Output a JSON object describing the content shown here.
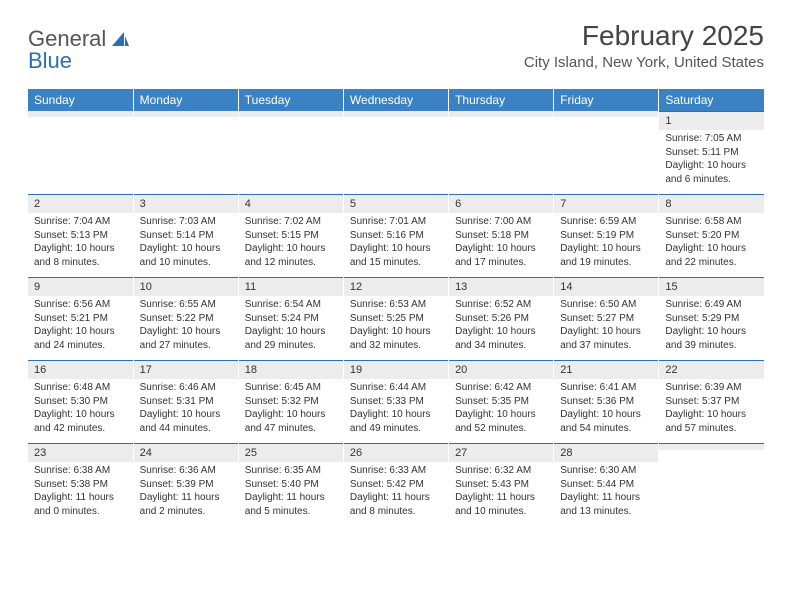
{
  "brand": {
    "part1": "General",
    "part2": "Blue"
  },
  "title": "February 2025",
  "location": "City Island, New York, United States",
  "colors": {
    "header_bg": "#3b82c4",
    "header_text": "#ffffff",
    "daynum_bg": "#ececec",
    "border_top": "#2b6fb0",
    "text": "#333333",
    "page_bg": "#ffffff"
  },
  "weekdays": [
    "Sunday",
    "Monday",
    "Tuesday",
    "Wednesday",
    "Thursday",
    "Friday",
    "Saturday"
  ],
  "weeks": [
    [
      {
        "n": "",
        "sunrise": "",
        "sunset": "",
        "daylight": ""
      },
      {
        "n": "",
        "sunrise": "",
        "sunset": "",
        "daylight": ""
      },
      {
        "n": "",
        "sunrise": "",
        "sunset": "",
        "daylight": ""
      },
      {
        "n": "",
        "sunrise": "",
        "sunset": "",
        "daylight": ""
      },
      {
        "n": "",
        "sunrise": "",
        "sunset": "",
        "daylight": ""
      },
      {
        "n": "",
        "sunrise": "",
        "sunset": "",
        "daylight": ""
      },
      {
        "n": "1",
        "sunrise": "Sunrise: 7:05 AM",
        "sunset": "Sunset: 5:11 PM",
        "daylight": "Daylight: 10 hours and 6 minutes."
      }
    ],
    [
      {
        "n": "2",
        "sunrise": "Sunrise: 7:04 AM",
        "sunset": "Sunset: 5:13 PM",
        "daylight": "Daylight: 10 hours and 8 minutes."
      },
      {
        "n": "3",
        "sunrise": "Sunrise: 7:03 AM",
        "sunset": "Sunset: 5:14 PM",
        "daylight": "Daylight: 10 hours and 10 minutes."
      },
      {
        "n": "4",
        "sunrise": "Sunrise: 7:02 AM",
        "sunset": "Sunset: 5:15 PM",
        "daylight": "Daylight: 10 hours and 12 minutes."
      },
      {
        "n": "5",
        "sunrise": "Sunrise: 7:01 AM",
        "sunset": "Sunset: 5:16 PM",
        "daylight": "Daylight: 10 hours and 15 minutes."
      },
      {
        "n": "6",
        "sunrise": "Sunrise: 7:00 AM",
        "sunset": "Sunset: 5:18 PM",
        "daylight": "Daylight: 10 hours and 17 minutes."
      },
      {
        "n": "7",
        "sunrise": "Sunrise: 6:59 AM",
        "sunset": "Sunset: 5:19 PM",
        "daylight": "Daylight: 10 hours and 19 minutes."
      },
      {
        "n": "8",
        "sunrise": "Sunrise: 6:58 AM",
        "sunset": "Sunset: 5:20 PM",
        "daylight": "Daylight: 10 hours and 22 minutes."
      }
    ],
    [
      {
        "n": "9",
        "sunrise": "Sunrise: 6:56 AM",
        "sunset": "Sunset: 5:21 PM",
        "daylight": "Daylight: 10 hours and 24 minutes."
      },
      {
        "n": "10",
        "sunrise": "Sunrise: 6:55 AM",
        "sunset": "Sunset: 5:22 PM",
        "daylight": "Daylight: 10 hours and 27 minutes."
      },
      {
        "n": "11",
        "sunrise": "Sunrise: 6:54 AM",
        "sunset": "Sunset: 5:24 PM",
        "daylight": "Daylight: 10 hours and 29 minutes."
      },
      {
        "n": "12",
        "sunrise": "Sunrise: 6:53 AM",
        "sunset": "Sunset: 5:25 PM",
        "daylight": "Daylight: 10 hours and 32 minutes."
      },
      {
        "n": "13",
        "sunrise": "Sunrise: 6:52 AM",
        "sunset": "Sunset: 5:26 PM",
        "daylight": "Daylight: 10 hours and 34 minutes."
      },
      {
        "n": "14",
        "sunrise": "Sunrise: 6:50 AM",
        "sunset": "Sunset: 5:27 PM",
        "daylight": "Daylight: 10 hours and 37 minutes."
      },
      {
        "n": "15",
        "sunrise": "Sunrise: 6:49 AM",
        "sunset": "Sunset: 5:29 PM",
        "daylight": "Daylight: 10 hours and 39 minutes."
      }
    ],
    [
      {
        "n": "16",
        "sunrise": "Sunrise: 6:48 AM",
        "sunset": "Sunset: 5:30 PM",
        "daylight": "Daylight: 10 hours and 42 minutes."
      },
      {
        "n": "17",
        "sunrise": "Sunrise: 6:46 AM",
        "sunset": "Sunset: 5:31 PM",
        "daylight": "Daylight: 10 hours and 44 minutes."
      },
      {
        "n": "18",
        "sunrise": "Sunrise: 6:45 AM",
        "sunset": "Sunset: 5:32 PM",
        "daylight": "Daylight: 10 hours and 47 minutes."
      },
      {
        "n": "19",
        "sunrise": "Sunrise: 6:44 AM",
        "sunset": "Sunset: 5:33 PM",
        "daylight": "Daylight: 10 hours and 49 minutes."
      },
      {
        "n": "20",
        "sunrise": "Sunrise: 6:42 AM",
        "sunset": "Sunset: 5:35 PM",
        "daylight": "Daylight: 10 hours and 52 minutes."
      },
      {
        "n": "21",
        "sunrise": "Sunrise: 6:41 AM",
        "sunset": "Sunset: 5:36 PM",
        "daylight": "Daylight: 10 hours and 54 minutes."
      },
      {
        "n": "22",
        "sunrise": "Sunrise: 6:39 AM",
        "sunset": "Sunset: 5:37 PM",
        "daylight": "Daylight: 10 hours and 57 minutes."
      }
    ],
    [
      {
        "n": "23",
        "sunrise": "Sunrise: 6:38 AM",
        "sunset": "Sunset: 5:38 PM",
        "daylight": "Daylight: 11 hours and 0 minutes."
      },
      {
        "n": "24",
        "sunrise": "Sunrise: 6:36 AM",
        "sunset": "Sunset: 5:39 PM",
        "daylight": "Daylight: 11 hours and 2 minutes."
      },
      {
        "n": "25",
        "sunrise": "Sunrise: 6:35 AM",
        "sunset": "Sunset: 5:40 PM",
        "daylight": "Daylight: 11 hours and 5 minutes."
      },
      {
        "n": "26",
        "sunrise": "Sunrise: 6:33 AM",
        "sunset": "Sunset: 5:42 PM",
        "daylight": "Daylight: 11 hours and 8 minutes."
      },
      {
        "n": "27",
        "sunrise": "Sunrise: 6:32 AM",
        "sunset": "Sunset: 5:43 PM",
        "daylight": "Daylight: 11 hours and 10 minutes."
      },
      {
        "n": "28",
        "sunrise": "Sunrise: 6:30 AM",
        "sunset": "Sunset: 5:44 PM",
        "daylight": "Daylight: 11 hours and 13 minutes."
      },
      {
        "n": "",
        "sunrise": "",
        "sunset": "",
        "daylight": ""
      }
    ]
  ]
}
